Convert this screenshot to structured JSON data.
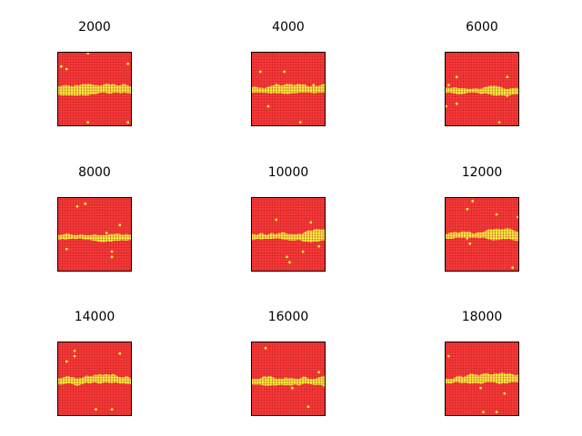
{
  "chart_data": {
    "type": "heatmap",
    "layout": "3x3 grid of panels",
    "grid_cells": [
      28,
      28
    ],
    "colors": {
      "background_phase": "#ff3b3b",
      "band_phase": "#ffff40",
      "grid_line": "#b21f1f",
      "frame": "#000000"
    },
    "panels": [
      {
        "title": "2000",
        "band_center": 0.52,
        "band_amplitude": 0.05,
        "seed": 3
      },
      {
        "title": "4000",
        "band_center": 0.52,
        "band_amplitude": 0.05,
        "seed": 7
      },
      {
        "title": "6000",
        "band_center": 0.52,
        "band_amplitude": 0.05,
        "seed": 11
      },
      {
        "title": "8000",
        "band_center": 0.53,
        "band_amplitude": 0.06,
        "seed": 5
      },
      {
        "title": "10000",
        "band_center": 0.53,
        "band_amplitude": 0.06,
        "seed": 13
      },
      {
        "title": "12000",
        "band_center": 0.52,
        "band_amplitude": 0.06,
        "seed": 17
      },
      {
        "title": "14000",
        "band_center": 0.52,
        "band_amplitude": 0.06,
        "seed": 19
      },
      {
        "title": "16000",
        "band_center": 0.52,
        "band_amplitude": 0.06,
        "seed": 23
      },
      {
        "title": "18000",
        "band_center": 0.52,
        "band_amplitude": 0.06,
        "seed": 29
      }
    ]
  }
}
